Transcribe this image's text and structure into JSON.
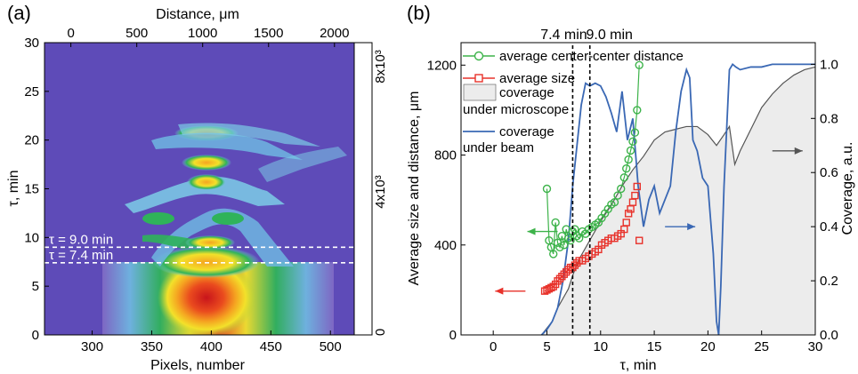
{
  "chart_data": [
    {
      "panel_label": "(a)",
      "type": "heatmap",
      "title": "",
      "xlabel": "Pixels, number",
      "ylabel": "τ, min",
      "x2label": "Distance, μm",
      "xlim": [
        260,
        520
      ],
      "ylim": [
        0,
        30
      ],
      "x2lim": [
        -200,
        2150
      ],
      "xticks": [
        300,
        350,
        400,
        450,
        500
      ],
      "x2ticks": [
        0,
        500,
        1000,
        1500,
        2000
      ],
      "yticks": [
        0,
        5,
        10,
        15,
        20,
        25,
        30
      ],
      "colorbar": {
        "min": 0,
        "max": 8000,
        "labels": [
          "8x10³",
          "4x10³",
          "0"
        ],
        "colors": [
          "#5a4fc0",
          "#7f68c4",
          "#6fb6e0",
          "#7ccce6",
          "#2fb35a",
          "#a9d23a",
          "#f3e12a",
          "#f5a421",
          "#ea4b1e",
          "#c8141b"
        ]
      },
      "annotations": [
        {
          "text": "τ = 9.0 min",
          "y": 9.0
        },
        {
          "text": "τ = 7.4 min",
          "y": 7.4
        }
      ]
    },
    {
      "panel_label": "(b)",
      "type": "line",
      "title": "",
      "xlabel": "τ, min",
      "ylabel": "Average size and distance, μm",
      "y2label": "Coverage, a.u.",
      "xlim": [
        -3,
        30
      ],
      "ylim": [
        0,
        1300
      ],
      "y2lim": [
        0,
        1.08
      ],
      "xticks": [
        0,
        5,
        10,
        15,
        20,
        25,
        30
      ],
      "yticks": [
        0,
        400,
        800,
        1200
      ],
      "y2ticks": [
        0.0,
        0.2,
        0.4,
        0.6,
        0.8,
        1.0
      ],
      "vlines": [
        {
          "x": 7.4,
          "label": "7.4 min"
        },
        {
          "x": 9.0,
          "label": "9.0 min"
        }
      ],
      "legend": [
        {
          "label": "average center-center distance",
          "color": "#3db34a",
          "marker": "circle"
        },
        {
          "label": "average size",
          "color": "#e8322b",
          "marker": "square"
        },
        {
          "label": "coverage",
          "label2": "under microscope",
          "color": "#555555",
          "fill": "#ececec",
          "marker": "area"
        },
        {
          "label": "coverage",
          "label2": "under beam",
          "color": "#3a68b4",
          "marker": "line"
        }
      ],
      "series": [
        {
          "name": "average center-center distance",
          "axis": "left",
          "color": "#3db34a",
          "x": [
            5.0,
            5.2,
            5.4,
            5.6,
            5.8,
            6.0,
            6.2,
            6.4,
            6.6,
            6.8,
            7.0,
            7.2,
            7.4,
            7.6,
            7.8,
            8.0,
            8.3,
            8.6,
            8.9,
            9.2,
            9.5,
            9.8,
            10.1,
            10.4,
            10.7,
            11.0,
            11.3,
            11.6,
            11.9,
            12.2,
            12.4,
            12.6,
            12.8,
            13.0,
            13.2,
            13.4,
            13.6
          ],
          "values": [
            650,
            420,
            390,
            360,
            500,
            410,
            390,
            440,
            400,
            470,
            430,
            420,
            460,
            470,
            440,
            430,
            460,
            450,
            470,
            480,
            490,
            500,
            520,
            540,
            560,
            580,
            590,
            620,
            650,
            700,
            740,
            780,
            820,
            860,
            900,
            1000,
            1200
          ]
        },
        {
          "name": "average size",
          "axis": "left",
          "color": "#e8322b",
          "x": [
            4.8,
            5.0,
            5.2,
            5.4,
            5.6,
            5.8,
            6.0,
            6.2,
            6.4,
            6.6,
            6.8,
            7.0,
            7.2,
            7.4,
            7.6,
            7.8,
            8.0,
            8.3,
            8.6,
            8.9,
            9.2,
            9.5,
            9.8,
            10.1,
            10.4,
            10.7,
            11.0,
            11.3,
            11.6,
            11.9,
            12.2,
            12.4,
            12.6,
            12.8,
            13.0,
            13.2,
            13.4,
            13.6
          ],
          "values": [
            195,
            200,
            205,
            210,
            215,
            225,
            240,
            250,
            260,
            270,
            280,
            290,
            300,
            300,
            310,
            320,
            330,
            330,
            340,
            350,
            360,
            370,
            380,
            400,
            410,
            420,
            430,
            430,
            440,
            450,
            470,
            500,
            540,
            560,
            590,
            620,
            660,
            420
          ]
        },
        {
          "name": "coverage under microscope",
          "axis": "right",
          "color": "#555555",
          "fill": "#ececec",
          "x": [
            4.5,
            5.5,
            6.0,
            7.0,
            7.4,
            8.0,
            9.0,
            10.0,
            11.0,
            12.0,
            13.0,
            14.0,
            15.0,
            16.0,
            17.0,
            18.0,
            19.0,
            20.0,
            20.8,
            21.5,
            22.0,
            22.5,
            23.0,
            24.0,
            25.0,
            26.0,
            27.0,
            28.0,
            29.0,
            30.0
          ],
          "values": [
            0.0,
            0.05,
            0.1,
            0.17,
            0.22,
            0.28,
            0.35,
            0.42,
            0.48,
            0.55,
            0.61,
            0.66,
            0.72,
            0.75,
            0.76,
            0.77,
            0.77,
            0.74,
            0.7,
            0.74,
            0.77,
            0.63,
            0.68,
            0.76,
            0.84,
            0.89,
            0.93,
            0.96,
            0.98,
            0.99
          ]
        },
        {
          "name": "coverage under beam",
          "axis": "right",
          "color": "#3a68b4",
          "x": [
            4.5,
            5.0,
            5.5,
            6.0,
            6.5,
            7.0,
            7.4,
            7.8,
            8.2,
            8.6,
            9.0,
            9.5,
            10.0,
            10.5,
            11.0,
            11.5,
            12.0,
            12.5,
            13.0,
            13.5,
            14.0,
            14.5,
            15.0,
            15.5,
            16.0,
            16.5,
            17.0,
            17.5,
            18.0,
            18.3,
            18.6,
            19.0,
            19.5,
            20.0,
            20.5,
            20.8,
            21.0,
            21.2,
            21.5,
            22.0,
            22.3,
            22.6,
            23.0,
            24.0,
            25.0,
            26.0,
            27.0,
            28.0,
            29.0,
            30.0
          ],
          "values": [
            0.0,
            0.02,
            0.05,
            0.1,
            0.2,
            0.35,
            0.55,
            0.7,
            0.85,
            0.93,
            0.92,
            0.93,
            0.92,
            0.88,
            0.82,
            0.75,
            0.9,
            0.72,
            0.8,
            0.55,
            0.4,
            0.5,
            0.55,
            0.45,
            0.5,
            0.55,
            0.75,
            0.9,
            0.98,
            0.95,
            0.72,
            0.68,
            0.58,
            0.55,
            0.3,
            0.05,
            0.0,
            0.18,
            0.55,
            0.98,
            1.0,
            0.99,
            0.98,
            0.99,
            0.99,
            1.0,
            1.0,
            1.0,
            1.0,
            1.0
          ]
        }
      ],
      "arrows": [
        {
          "direction": "left",
          "color": "#3db34a",
          "x": 6.0,
          "y": 460
        },
        {
          "direction": "left",
          "color": "#e8322b",
          "x": 3.0,
          "y": 195
        },
        {
          "direction": "right",
          "color": "#3a68b4",
          "x": 16.0,
          "y2": 0.4
        },
        {
          "direction": "right",
          "color": "#555555",
          "x": 26.0,
          "y2": 0.68
        }
      ]
    }
  ]
}
